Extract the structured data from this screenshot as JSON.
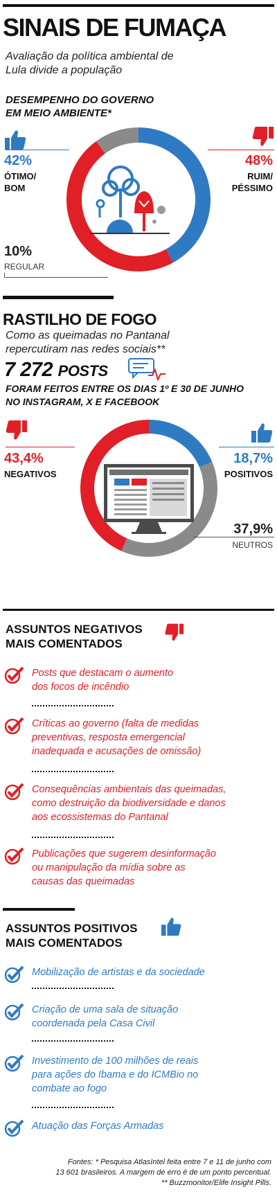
{
  "header": {
    "title": "SINAIS DE FUMAÇA",
    "subtitle_line1": "Avaliação da política ambiental de",
    "subtitle_line2": "Lula divide a população"
  },
  "approval": {
    "kicker_line1": "DESEMPENHO DO GOVERNO",
    "kicker_line2": "EM MEIO AMBIENTE*",
    "good": {
      "pct": "42%",
      "label_line1": "ÓTIMO/",
      "label_line2": "BOM"
    },
    "bad": {
      "pct": "48%",
      "label_line1": "RUIM/",
      "label_line2": "PÉSSIMO"
    },
    "regular": {
      "pct": "10%",
      "label": "REGULAR"
    }
  },
  "fire": {
    "heading": "RASTILHO DE FOGO",
    "subtitle_line1": "Como as queimadas no Pantanal",
    "subtitle_line2": "repercutiram nas redes sociais**",
    "posts_number": "7 272",
    "posts_word": "POSTS",
    "posts_desc_line1": "FORAM FEITOS ENTRE OS DIAS 1º E 30 DE JUNHO",
    "posts_desc_line2": "NO INSTAGRAM, X E FACEBOOK",
    "negative": {
      "pct": "43,4%",
      "label": "NEGATIVOS"
    },
    "positive": {
      "pct": "18,7%",
      "label": "POSITIVOS"
    },
    "neutral": {
      "pct": "37,9%",
      "label": "NEUTROS"
    }
  },
  "negative_topics": {
    "heading_line1": "ASSUNTOS NEGATIVOS",
    "heading_line2": "MAIS COMENTADOS",
    "items": [
      {
        "line1": "Posts que destacam o aumento",
        "line2": "dos focos de incêndio",
        "line3": ""
      },
      {
        "line1": "Críticas ao governo (falta de medidas",
        "line2": "preventivas, resposta emergencial",
        "line3": "inadequada e acusações de omissão)"
      },
      {
        "line1": "Consequências ambientais das queimadas,",
        "line2": "como destruição da biodiversidade e danos",
        "line3": "aos ecossistemas do Pantanal"
      },
      {
        "line1": "Publicações que sugerem desinformação",
        "line2": "ou manipulação da mídia sobre as",
        "line3": "causas das queimadas"
      }
    ]
  },
  "positive_topics": {
    "heading_line1": "ASSUNTOS POSITIVOS",
    "heading_line2": "MAIS COMENTADOS",
    "items": [
      {
        "line1": "Mobilização de artistas e da sociedade",
        "line2": "",
        "line3": ""
      },
      {
        "line1": "Criação de uma sala de situação",
        "line2": "coordenada pela Casa Civil",
        "line3": ""
      },
      {
        "line1": "Investimento de 100 milhões de reais",
        "line2": "para ações do Ibama e do ICMBio no",
        "line3": "combate ao fogo"
      },
      {
        "line1": "Atuação das Forças Armadas",
        "line2": "",
        "line3": ""
      }
    ]
  },
  "footer": {
    "line1": "Fontes: * Pesquisa AtlasIntel feita entre 7 e 11 de junho com",
    "line2": "13 601 brasileiros. A margem de erro é de um ponto percentual.",
    "line3": "** Buzzmonitor/Elife Insight Pills."
  },
  "colors": {
    "blue": "#2e7bc3",
    "red": "#e11f26",
    "gray": "#8a8a8a",
    "light_gray": "#b9b9b9"
  },
  "icons": [
    "thumbs-up-icon",
    "thumbs-down-icon",
    "tree-icon",
    "chat-icon",
    "monitor-icon",
    "check-icon"
  ],
  "chart_data": [
    {
      "type": "pie",
      "title": "DESEMPENHO DO GOVERNO EM MEIO AMBIENTE*",
      "categories": [
        "ÓTIMO/BOM",
        "RUIM/PÉSSIMO",
        "REGULAR"
      ],
      "values": [
        42,
        48,
        10
      ],
      "colors": [
        "#2e7bc3",
        "#e11f26",
        "#8a8a8a"
      ],
      "style": "donut"
    },
    {
      "type": "pie",
      "title": "",
      "categories": [
        "POSITIVOS",
        "NEUTROS",
        "NEGATIVOS"
      ],
      "values": [
        18.7,
        37.9,
        43.4
      ],
      "colors": [
        "#2e7bc3",
        "#8a8a8a",
        "#e11f26"
      ],
      "style": "donut"
    }
  ]
}
